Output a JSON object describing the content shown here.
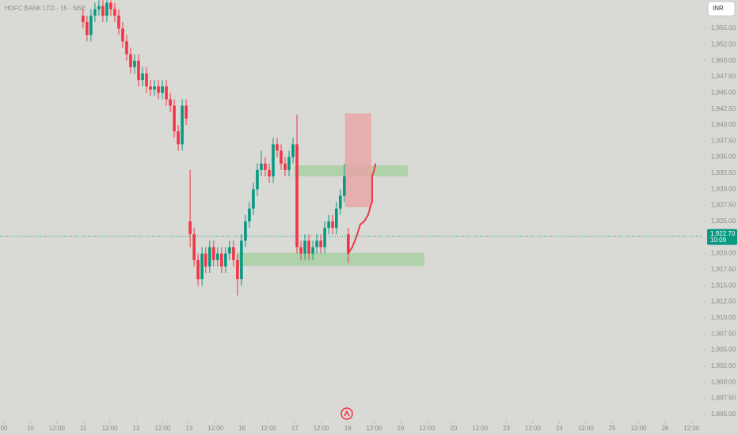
{
  "chart_data": {
    "type": "candlestick",
    "title": "HDFC BANK LTD · 15 · NSE",
    "currency": "INR",
    "up_color": "#089981",
    "down_color": "#f23645",
    "xlim": [
      -0.15,
      26.44
    ],
    "ylim": [
      1894.0,
      1959.43
    ],
    "xticks": [
      {
        "value": 0,
        "label": "00"
      },
      {
        "value": 1,
        "label": "10"
      },
      {
        "value": 2,
        "label": "12:00"
      },
      {
        "value": 3,
        "label": "11"
      },
      {
        "value": 4,
        "label": "12:00"
      },
      {
        "value": 5,
        "label": "12"
      },
      {
        "value": 6,
        "label": "12:00"
      },
      {
        "value": 7,
        "label": "13"
      },
      {
        "value": 8,
        "label": "12:00"
      },
      {
        "value": 9,
        "label": "16"
      },
      {
        "value": 10,
        "label": "12:00"
      },
      {
        "value": 11,
        "label": "17"
      },
      {
        "value": 12,
        "label": "12:00"
      },
      {
        "value": 13,
        "label": "18"
      },
      {
        "value": 14,
        "label": "12:00"
      },
      {
        "value": 15,
        "label": "19"
      },
      {
        "value": 16,
        "label": "12:00"
      },
      {
        "value": 17,
        "label": "20"
      },
      {
        "value": 18,
        "label": "12:00"
      },
      {
        "value": 19,
        "label": "23"
      },
      {
        "value": 20,
        "label": "12:00"
      },
      {
        "value": 21,
        "label": "24"
      },
      {
        "value": 22,
        "label": "12:00"
      },
      {
        "value": 23,
        "label": "25"
      },
      {
        "value": 24,
        "label": "12:00"
      },
      {
        "value": 25,
        "label": "26"
      },
      {
        "value": 26,
        "label": "12:00"
      }
    ],
    "yticks": [
      {
        "value": 1955,
        "label": "1,955.00"
      },
      {
        "value": 1952.5,
        "label": "1,952.50"
      },
      {
        "value": 1950,
        "label": "1,950.00"
      },
      {
        "value": 1947.5,
        "label": "1,947.50"
      },
      {
        "value": 1945,
        "label": "1,945.00"
      },
      {
        "value": 1942.5,
        "label": "1,942.50"
      },
      {
        "value": 1940,
        "label": "1,940.00"
      },
      {
        "value": 1937.5,
        "label": "1,937.50"
      },
      {
        "value": 1935,
        "label": "1,935.00"
      },
      {
        "value": 1932.5,
        "label": "1,932.50"
      },
      {
        "value": 1930,
        "label": "1,930.00"
      },
      {
        "value": 1927.5,
        "label": "1,927.50"
      },
      {
        "value": 1925,
        "label": "1,925.00"
      },
      {
        "value": 1920,
        "label": "1,920.00"
      },
      {
        "value": 1917.5,
        "label": "1,917.50"
      },
      {
        "value": 1915,
        "label": "1,915.00"
      },
      {
        "value": 1912.5,
        "label": "1,912.50"
      },
      {
        "value": 1910,
        "label": "1,910.00"
      },
      {
        "value": 1907.5,
        "label": "1,907.50"
      },
      {
        "value": 1905,
        "label": "1,905.00"
      },
      {
        "value": 1902.5,
        "label": "1,902.50"
      },
      {
        "value": 1900,
        "label": "1,900.00"
      },
      {
        "value": 1897.5,
        "label": "1,897.50"
      },
      {
        "value": 1895,
        "label": "1,895.00"
      }
    ],
    "x": [
      2.99,
      3.14,
      3.29,
      3.44,
      3.59,
      3.74,
      3.89,
      4.04,
      4.19,
      4.34,
      4.49,
      4.64,
      4.79,
      4.94,
      5.09,
      5.24,
      5.39,
      5.54,
      5.69,
      5.84,
      5.99,
      6.14,
      6.29,
      6.44,
      6.59,
      6.74,
      6.89,
      7.04,
      7.19,
      7.34,
      7.49,
      7.63,
      7.78,
      7.93,
      8.08,
      8.23,
      8.38,
      8.53,
      8.68,
      8.83,
      8.98,
      9.13,
      9.28,
      9.43,
      9.58,
      9.73,
      9.88,
      10.03,
      10.18,
      10.33,
      10.48,
      10.63,
      10.78,
      10.93,
      11.08,
      11.23,
      11.38,
      11.53,
      11.68,
      11.83,
      11.98,
      12.13,
      12.28,
      12.43,
      12.57,
      12.72,
      12.87,
      13.02
    ],
    "open": [
      1957,
      1956,
      1954,
      1957,
      1958,
      1958.5,
      1957,
      1959,
      1958,
      1957,
      1955,
      1953,
      1951,
      1949,
      1950,
      1947,
      1948,
      1946,
      1945.5,
      1946,
      1945,
      1946,
      1944,
      1943,
      1939,
      1937,
      1943,
      1925,
      1923,
      1919,
      1916,
      1920,
      1918,
      1921,
      1919,
      1920,
      1918,
      1920,
      1921,
      1919,
      1916,
      1922,
      1925,
      1927,
      1930,
      1933,
      1934,
      1933,
      1932,
      1937,
      1936,
      1934,
      1933,
      1935,
      1937,
      1921,
      1920,
      1922,
      1920,
      1921,
      1922,
      1921,
      1924,
      1925,
      1924,
      1927,
      1929,
      1923
    ],
    "high": [
      1958,
      1957,
      1958,
      1959,
      1959.4,
      1959.4,
      1959.4,
      1959.4,
      1959,
      1958,
      1956,
      1954,
      1952,
      1951,
      1951,
      1949,
      1949,
      1947,
      1947,
      1947,
      1947,
      1947,
      1945,
      1944,
      1940,
      1944,
      1944,
      1933,
      1924,
      1920,
      1921,
      1921,
      1922,
      1922,
      1921,
      1921,
      1921,
      1922,
      1922,
      1920,
      1923,
      1926,
      1928,
      1931,
      1934,
      1936,
      1935,
      1934,
      1938,
      1938,
      1937,
      1935,
      1936,
      1938,
      1941.6,
      1922,
      1923,
      1923,
      1922,
      1923,
      1923,
      1925,
      1926,
      1926,
      1928,
      1930,
      1934,
      1924
    ],
    "low": [
      1955,
      1953,
      1953,
      1956,
      1957,
      1956,
      1956,
      1957,
      1956,
      1954,
      1952,
      1950,
      1948,
      1948,
      1946,
      1946,
      1945,
      1944.5,
      1944.5,
      1944,
      1944,
      1943,
      1942,
      1938,
      1936,
      1936,
      1940,
      1921,
      1918,
      1915,
      1915,
      1917,
      1917,
      1918,
      1918,
      1917,
      1917,
      1919,
      1918,
      1913.5,
      1915,
      1921,
      1924,
      1926,
      1929,
      1932,
      1932,
      1931,
      1931,
      1935,
      1933,
      1932,
      1932,
      1934,
      1920,
      1919,
      1919,
      1919,
      1919,
      1920,
      1920,
      1920,
      1923,
      1923,
      1923,
      1926,
      1928,
      1918.5
    ],
    "close": [
      1956,
      1954,
      1957,
      1958,
      1958.5,
      1957,
      1959,
      1958,
      1957,
      1955,
      1953,
      1951,
      1949,
      1950,
      1947,
      1948,
      1946,
      1945.5,
      1946,
      1945,
      1946,
      1944,
      1943,
      1939,
      1937,
      1943,
      1941,
      1923,
      1919,
      1916,
      1920,
      1918,
      1921,
      1919,
      1920,
      1918,
      1920,
      1921,
      1919,
      1916,
      1922,
      1925,
      1927,
      1930,
      1933,
      1934,
      1933,
      1932,
      1937,
      1936,
      1934,
      1933,
      1935,
      1937,
      1921,
      1920,
      1922,
      1920,
      1921,
      1922,
      1921,
      1924,
      1925,
      1924,
      1927,
      1929,
      1932,
      1920
    ],
    "zones": [
      {
        "x": [
          10.99,
          15.27
        ],
        "y": [
          1932.0,
          1933.7
        ],
        "color": "#a5cf9f"
      },
      {
        "x": [
          8.83,
          15.9
        ],
        "y": [
          1918.1,
          1920.1
        ],
        "color": "#a5cf9f"
      },
      {
        "x": [
          12.9,
          13.89
        ],
        "y": [
          1927.2,
          1941.8
        ],
        "color": "#e8a2a4"
      }
    ],
    "projection": {
      "color": "#f23645",
      "x": [
        13.02,
        13.17,
        13.32,
        13.47,
        13.62,
        13.77,
        13.87,
        13.92,
        13.92,
        14.0,
        14.05
      ],
      "values": [
        1920,
        1921,
        1922.5,
        1924.5,
        1925,
        1926,
        1927.5,
        1928,
        1932,
        1933,
        1934
      ]
    },
    "last_price": {
      "value": 1922.7,
      "label": "1,922.70"
    },
    "countdown": "10:09"
  }
}
